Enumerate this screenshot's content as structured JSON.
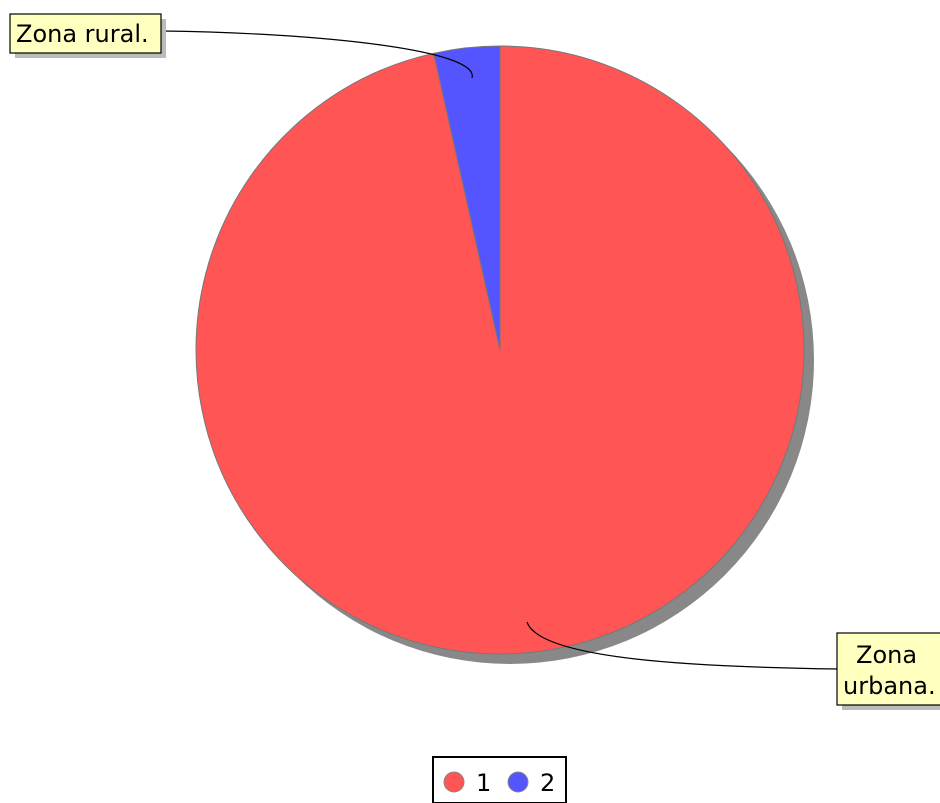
{
  "chart_data": {
    "type": "pie",
    "categories": [
      "1",
      "2"
    ],
    "values": [
      96.5,
      3.5
    ],
    "colors": [
      "#ff5555",
      "#5555ff"
    ],
    "slice_labels": [
      "Zona urbana.",
      "Zona rural."
    ],
    "legend": {
      "entries": [
        "1",
        "2"
      ],
      "placement": "bottom-center"
    },
    "start_angle_deg": 0,
    "direction": "clockwise",
    "shadow": true
  },
  "callouts": {
    "rural": {
      "text": "Zona rural."
    },
    "urban": {
      "line1": "Zona",
      "line2": "urbana."
    }
  },
  "legend": {
    "item1": "1",
    "item2": "2"
  }
}
